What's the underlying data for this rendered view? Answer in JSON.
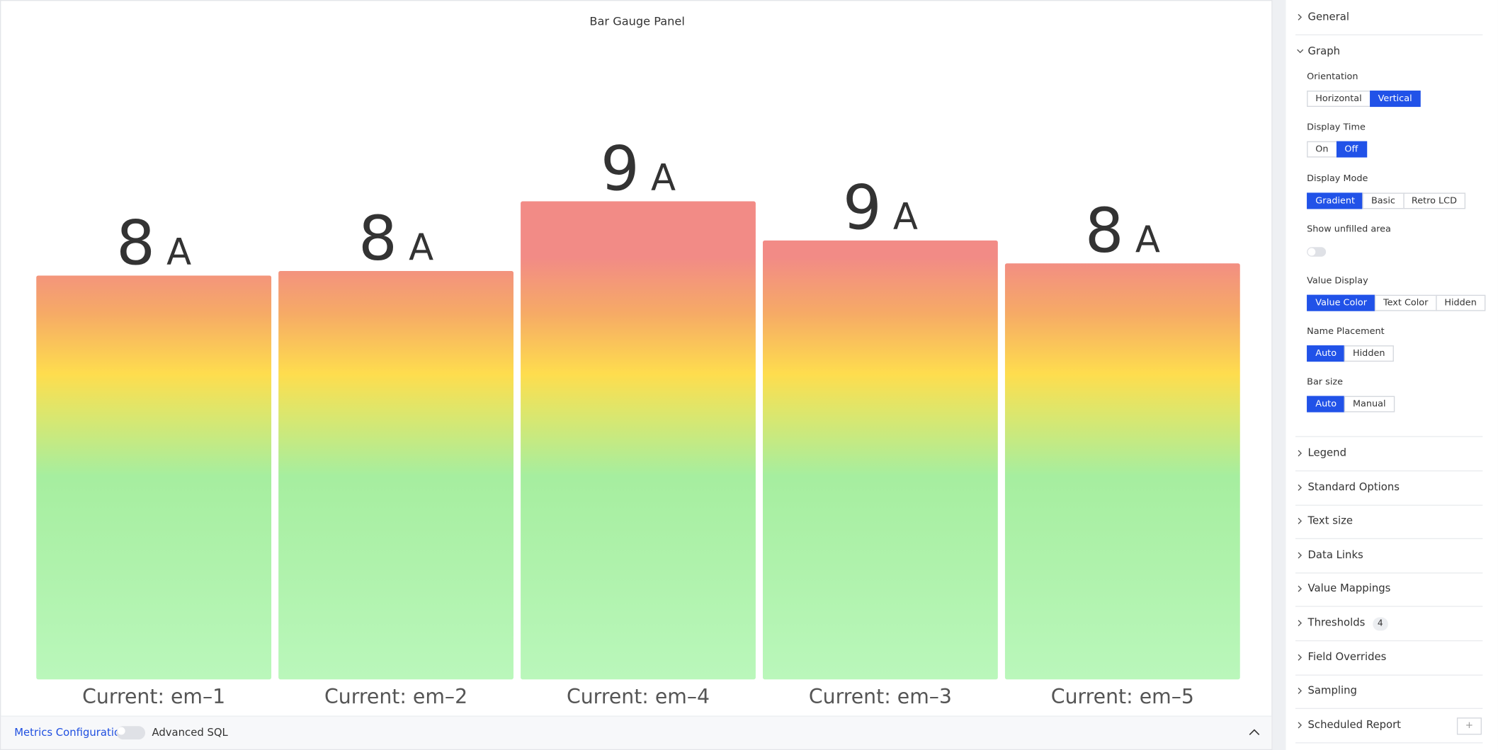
{
  "panel": {
    "title": "Bar Gauge Panel"
  },
  "chart_data": {
    "type": "bar",
    "title": "Bar Gauge Panel",
    "categories": [
      "Current: em–1",
      "Current: em–2",
      "Current: em–4",
      "Current: em–3",
      "Current: em–5"
    ],
    "values": [
      7.94,
      8.03,
      9.4,
      8.63,
      8.18
    ],
    "value_labels": [
      "8",
      "8",
      "9",
      "9",
      "8"
    ],
    "unit": "A",
    "ylim": [
      0,
      10
    ],
    "gradient_colors": [
      "#baf7bb",
      "#a6ee9f",
      "#dfe66a",
      "#fedd4e",
      "#f6aa66",
      "#f28b86",
      "#f28b86"
    ]
  },
  "footer": {
    "metrics": "Metrics Configuration",
    "advanced": "Advanced SQL"
  },
  "sidebar": {
    "general": "General",
    "graph": {
      "title": "Graph",
      "options": [
        {
          "label": "Orientation",
          "choices": [
            "Horizontal",
            "Vertical"
          ],
          "selected": 1
        },
        {
          "label": "Display Time",
          "choices": [
            "On",
            "Off"
          ],
          "selected": 1
        },
        {
          "label": "Display Mode",
          "choices": [
            "Gradient",
            "Basic",
            "Retro LCD"
          ],
          "selected": 0
        },
        {
          "label": "Show unfilled area",
          "toggle": false
        },
        {
          "label": "Value Display",
          "choices": [
            "Value Color",
            "Text Color",
            "Hidden"
          ],
          "selected": 0
        },
        {
          "label": "Name Placement",
          "choices": [
            "Auto",
            "Hidden"
          ],
          "selected": 0
        },
        {
          "label": "Bar size",
          "choices": [
            "Auto",
            "Manual"
          ],
          "selected": 0
        }
      ]
    },
    "sections": [
      {
        "title": "Legend"
      },
      {
        "title": "Standard Options"
      },
      {
        "title": "Text size"
      },
      {
        "title": "Data Links"
      },
      {
        "title": "Value Mappings"
      },
      {
        "title": "Thresholds",
        "badge": 4
      },
      {
        "title": "Field Overrides"
      },
      {
        "title": "Sampling"
      },
      {
        "title": "Scheduled Report",
        "action": "+"
      }
    ]
  }
}
